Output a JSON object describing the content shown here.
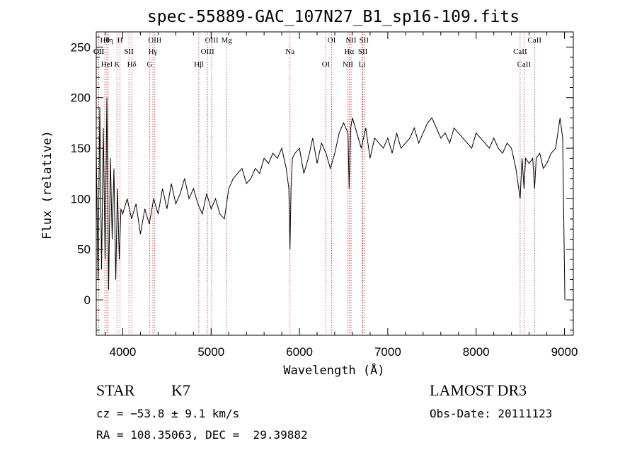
{
  "chart_data": {
    "type": "line",
    "title": "spec-55889-GAC_107N27_B1_sp16-109.fits",
    "xlabel": "Wavelength (Å)",
    "ylabel": "Flux (relative)",
    "xlim": [
      3700,
      9100
    ],
    "ylim": [
      -35,
      265
    ],
    "xticks": [
      4000,
      5000,
      6000,
      7000,
      8000,
      9000
    ],
    "yticks": [
      0,
      50,
      100,
      150,
      200,
      250
    ],
    "grid": false,
    "series": [
      {
        "name": "flux",
        "x": [
          3700,
          3720,
          3740,
          3760,
          3780,
          3800,
          3820,
          3840,
          3860,
          3880,
          3900,
          3920,
          3940,
          3960,
          3980,
          4000,
          4050,
          4100,
          4150,
          4200,
          4250,
          4300,
          4350,
          4400,
          4450,
          4500,
          4550,
          4600,
          4650,
          4700,
          4750,
          4800,
          4850,
          4900,
          4950,
          5000,
          5050,
          5100,
          5150,
          5200,
          5250,
          5300,
          5350,
          5400,
          5450,
          5500,
          5550,
          5600,
          5650,
          5700,
          5750,
          5800,
          5850,
          5880,
          5893,
          5905,
          5920,
          5950,
          6000,
          6050,
          6100,
          6150,
          6200,
          6250,
          6300,
          6350,
          6400,
          6450,
          6500,
          6550,
          6563,
          6580,
          6600,
          6650,
          6700,
          6750,
          6800,
          6850,
          6900,
          6950,
          7000,
          7050,
          7100,
          7150,
          7200,
          7250,
          7300,
          7350,
          7400,
          7450,
          7500,
          7550,
          7600,
          7650,
          7700,
          7750,
          7800,
          7850,
          7900,
          7950,
          8000,
          8050,
          8100,
          8150,
          8200,
          8250,
          8300,
          8350,
          8400,
          8450,
          8498,
          8520,
          8542,
          8560,
          8600,
          8640,
          8662,
          8680,
          8720,
          8760,
          8800,
          8850,
          8900,
          8950,
          8980,
          9000,
          9005
        ],
        "values": [
          150,
          20,
          190,
          30,
          170,
          40,
          200,
          10,
          140,
          60,
          130,
          20,
          110,
          40,
          90,
          85,
          100,
          80,
          95,
          65,
          90,
          75,
          100,
          85,
          110,
          90,
          115,
          95,
          105,
          120,
          100,
          110,
          95,
          85,
          105,
          90,
          100,
          85,
          80,
          110,
          120,
          125,
          130,
          115,
          120,
          130,
          125,
          140,
          135,
          145,
          140,
          150,
          130,
          110,
          50,
          110,
          140,
          145,
          150,
          125,
          140,
          160,
          135,
          155,
          145,
          130,
          145,
          165,
          175,
          165,
          110,
          170,
          180,
          165,
          150,
          170,
          140,
          160,
          155,
          150,
          160,
          145,
          165,
          150,
          155,
          160,
          170,
          155,
          165,
          175,
          180,
          170,
          160,
          165,
          155,
          170,
          165,
          160,
          155,
          150,
          165,
          160,
          155,
          150,
          160,
          150,
          145,
          155,
          150,
          130,
          100,
          140,
          110,
          140,
          135,
          140,
          110,
          140,
          145,
          130,
          135,
          145,
          150,
          180,
          160,
          30,
          0
        ]
      }
    ],
    "lines": [
      {
        "label": "Hθ",
        "x": 3797
      },
      {
        "label": "OII",
        "x": 3727
      },
      {
        "label": "HeI",
        "x": 3820
      },
      {
        "label": "Hη",
        "x": 3835
      },
      {
        "label": "OII",
        "x": 3729
      },
      {
        "label": "K",
        "x": 3934
      },
      {
        "label": "H",
        "x": 3969
      },
      {
        "label": "SII",
        "x": 4070
      },
      {
        "label": "Hδ",
        "x": 4102
      },
      {
        "label": "OIII",
        "x": 4363
      },
      {
        "label": "Hγ",
        "x": 4341
      },
      {
        "label": "G",
        "x": 4305
      },
      {
        "label": "OIII",
        "x": 5007
      },
      {
        "label": "OIII",
        "x": 4959
      },
      {
        "label": "Hβ",
        "x": 4861
      },
      {
        "label": "Mg",
        "x": 5175
      },
      {
        "label": "Na",
        "x": 5893
      },
      {
        "label": "OI",
        "x": 6300
      },
      {
        "label": "OI",
        "x": 6364
      },
      {
        "label": "Hα",
        "x": 6563
      },
      {
        "label": "NII",
        "x": 6548
      },
      {
        "label": "NII",
        "x": 6584
      },
      {
        "label": "SII",
        "x": 6717
      },
      {
        "label": "Li",
        "x": 6708
      },
      {
        "label": "SII",
        "x": 6731
      },
      {
        "label": "CaII",
        "x": 8498
      },
      {
        "label": "CaII",
        "x": 8542
      },
      {
        "label": "CaII",
        "x": 8662
      }
    ]
  },
  "info": {
    "class_label": "STAR",
    "subclass": "K7",
    "survey": "LAMOST DR3",
    "redshift": "cz = −53.8 ± 9.1 km/s",
    "obs_date": "Obs-Date: 20111123",
    "coords": "RA = 108.35063, DEC =  29.39882"
  },
  "colors": {
    "line_marker": "#cc2222",
    "spectrum": "#000000",
    "axes": "#000000"
  }
}
